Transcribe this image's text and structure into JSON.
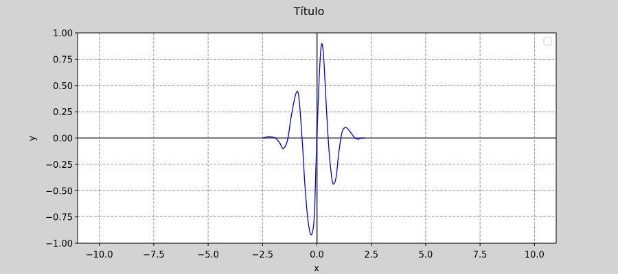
{
  "chart_data": {
    "type": "line",
    "title": "Título",
    "xlabel": "x",
    "ylabel": "y",
    "xlim": [
      -11,
      11
    ],
    "ylim": [
      -1.0,
      1.0
    ],
    "xticks": [
      -10.0,
      -7.5,
      -5.0,
      -2.5,
      0.0,
      2.5,
      5.0,
      7.5,
      10.0
    ],
    "xtick_labels": [
      "−10.0",
      "−7.5",
      "−5.0",
      "−2.5",
      "0.0",
      "2.5",
      "5.0",
      "7.5",
      "10.0"
    ],
    "yticks": [
      -1.0,
      -0.75,
      -0.5,
      -0.25,
      0.0,
      0.25,
      0.5,
      0.75,
      1.0
    ],
    "ytick_labels": [
      "−1.00",
      "−0.75",
      "−0.50",
      "−0.25",
      "0.00",
      "0.25",
      "0.50",
      "0.75",
      "1.00"
    ],
    "grid": true,
    "legend": "top-right (empty)",
    "series": [
      {
        "color": "#0000cc",
        "x": [
          -2.5,
          -2.3,
          -2.1,
          -1.9,
          -1.7,
          -1.55,
          -1.35,
          -1.2,
          -1.05,
          -0.95,
          -0.85,
          -0.75,
          -0.65,
          -0.55,
          -0.4,
          -0.25,
          -0.12,
          -0.05,
          0.0,
          0.1,
          0.2,
          0.3,
          0.42,
          0.55,
          0.7,
          0.8,
          0.9,
          1.0,
          1.15,
          1.3,
          1.45,
          1.6,
          1.75,
          1.9,
          2.05,
          2.2
        ],
        "y": [
          0.0,
          0.01,
          0.01,
          0.0,
          -0.05,
          -0.1,
          -0.02,
          0.18,
          0.35,
          0.43,
          0.42,
          0.2,
          -0.1,
          -0.45,
          -0.8,
          -0.92,
          -0.75,
          -0.3,
          0.0,
          0.55,
          0.88,
          0.8,
          0.35,
          -0.1,
          -0.4,
          -0.43,
          -0.35,
          -0.15,
          0.05,
          0.1,
          0.08,
          0.04,
          0.0,
          -0.01,
          0.0,
          0.0
        ]
      }
    ]
  }
}
